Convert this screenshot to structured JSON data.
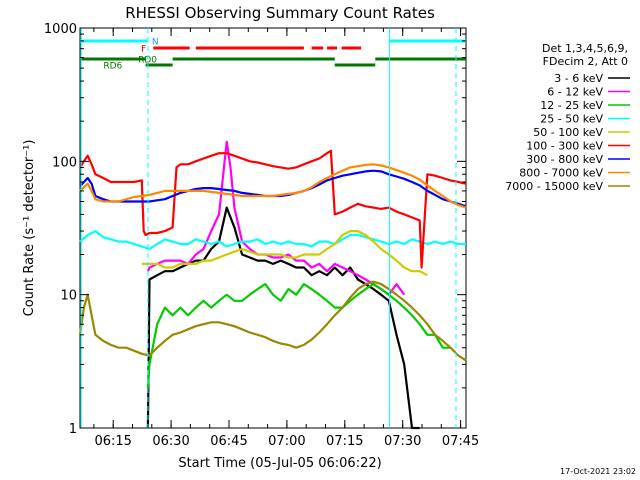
{
  "chart_data": {
    "type": "line",
    "title": "RHESSI Observing Summary Count Rates",
    "xlabel": "Start Time (05-Jul-05 06:06:22)",
    "ylabel": "Count Rate (s⁻¹ detector⁻¹)",
    "x_unit": "minutes after 06:06:22",
    "xlim": [
      0,
      100
    ],
    "ylim": [
      1,
      1000
    ],
    "y_scale": "log",
    "x_ticks": [
      {
        "x": 8.6,
        "label": "06:15"
      },
      {
        "x": 23.6,
        "label": "06:30"
      },
      {
        "x": 38.6,
        "label": "06:45"
      },
      {
        "x": 53.6,
        "label": "07:00"
      },
      {
        "x": 68.6,
        "label": "07:15"
      },
      {
        "x": 83.6,
        "label": "07:30"
      },
      {
        "x": 98.6,
        "label": "07:45"
      }
    ],
    "y_ticks": [
      {
        "y": 1,
        "label": "1"
      },
      {
        "y": 10,
        "label": "10"
      },
      {
        "y": 100,
        "label": "100"
      },
      {
        "y": 1000,
        "label": "1000"
      }
    ],
    "legend": {
      "placement": "right",
      "header": [
        "Det 1,3,4,5,6,9,",
        "FDecim 2, Att 0"
      ]
    },
    "series": [
      {
        "name": "3 - 6 keV",
        "color": "#000000",
        "x": [
          0,
          2,
          4,
          6,
          8,
          10,
          12,
          14,
          16,
          17.5,
          17.6,
          18,
          20,
          22,
          24,
          26,
          28,
          30,
          32,
          34,
          36,
          38,
          40,
          42,
          44,
          46,
          48,
          50,
          52,
          54,
          56,
          58,
          60,
          62,
          64,
          66,
          68,
          70,
          72,
          74,
          76,
          78,
          80,
          82,
          84,
          86,
          88,
          90,
          92,
          94,
          96,
          98,
          100
        ],
        "y": [
          null,
          null,
          null,
          null,
          null,
          null,
          null,
          null,
          null,
          null,
          1,
          13,
          14,
          15,
          15,
          16,
          17,
          18,
          18,
          22,
          25,
          45,
          32,
          20,
          19,
          18,
          18,
          17,
          18,
          17,
          16,
          16,
          14,
          15,
          14,
          16,
          14,
          16,
          13,
          12,
          11,
          10,
          9,
          5,
          3,
          1,
          1,
          null,
          null,
          null,
          null,
          null,
          null
        ]
      },
      {
        "name": "6 - 12 keV",
        "color": "#ff00ff",
        "x": [
          0,
          2,
          4,
          6,
          8,
          10,
          12,
          14,
          16,
          17.5,
          17.6,
          18,
          20,
          22,
          24,
          26,
          28,
          30,
          32,
          34,
          36,
          38,
          39,
          40,
          42,
          44,
          46,
          48,
          50,
          52,
          54,
          56,
          58,
          60,
          62,
          64,
          66,
          68,
          70,
          72,
          74,
          76,
          78,
          80,
          82,
          84,
          86,
          88,
          90,
          92,
          94,
          96,
          98,
          100
        ],
        "y": [
          null,
          null,
          null,
          null,
          null,
          null,
          null,
          null,
          null,
          null,
          15,
          16,
          17,
          18,
          18,
          18,
          17,
          20,
          22,
          30,
          40,
          140,
          90,
          45,
          25,
          22,
          20,
          20,
          19,
          19,
          20,
          18,
          18,
          16,
          17,
          15,
          17,
          16,
          15,
          14,
          13,
          12,
          11,
          10,
          12,
          10,
          null,
          null,
          null,
          null,
          null,
          null,
          null,
          null
        ]
      },
      {
        "name": "12 - 25 keV",
        "color": "#00cc00",
        "x": [
          0,
          2,
          4,
          6,
          8,
          10,
          12,
          14,
          16,
          17.5,
          17.6,
          18,
          20,
          22,
          24,
          26,
          28,
          30,
          32,
          34,
          36,
          38,
          40,
          42,
          44,
          46,
          48,
          50,
          52,
          54,
          56,
          58,
          60,
          62,
          64,
          66,
          68,
          70,
          72,
          74,
          76,
          78,
          80,
          82,
          84,
          86,
          88,
          90,
          92,
          94,
          96,
          98,
          100
        ],
        "y": [
          null,
          null,
          null,
          null,
          null,
          null,
          null,
          null,
          null,
          null,
          2,
          3,
          6,
          8,
          7,
          8,
          7,
          8,
          9,
          8,
          9,
          10,
          9,
          9,
          10,
          11,
          12,
          10,
          9,
          11,
          10,
          12,
          11,
          10,
          9,
          8,
          8,
          9,
          10,
          11,
          12,
          11,
          10,
          9,
          8,
          7,
          6,
          5,
          5,
          4,
          4,
          null,
          null
        ]
      },
      {
        "name": "25 - 50 keV",
        "color": "#00ffff",
        "x": [
          0,
          2,
          4,
          6,
          8,
          10,
          12,
          14,
          16,
          18,
          20,
          22,
          24,
          26,
          28,
          30,
          32,
          34,
          36,
          38,
          40,
          42,
          44,
          46,
          48,
          50,
          52,
          54,
          56,
          58,
          60,
          62,
          64,
          66,
          68,
          70,
          72,
          74,
          76,
          78,
          80,
          82,
          84,
          86,
          88,
          90,
          92,
          94,
          96,
          98,
          100
        ],
        "y": [
          25,
          28,
          30,
          27,
          26,
          25,
          25,
          24,
          23,
          22,
          24,
          26,
          25,
          24,
          24,
          26,
          25,
          24,
          25,
          23,
          24,
          25,
          25,
          26,
          24,
          25,
          24,
          25,
          24,
          24,
          23,
          25,
          25,
          24,
          26,
          28,
          28,
          27,
          26,
          25,
          24,
          25,
          24,
          26,
          25,
          24,
          25,
          24,
          25,
          24,
          24
        ]
      },
      {
        "name": "50 - 100 keV",
        "color": "#cccc00",
        "x": [
          0,
          2,
          4,
          6,
          8,
          10,
          12,
          14,
          16,
          18,
          20,
          22,
          24,
          26,
          28,
          30,
          32,
          34,
          36,
          38,
          40,
          42,
          44,
          46,
          48,
          50,
          52,
          54,
          56,
          58,
          60,
          62,
          64,
          66,
          68,
          70,
          72,
          74,
          76,
          78,
          80,
          82,
          84,
          86,
          88,
          90,
          92,
          94,
          96,
          98,
          100
        ],
        "y": [
          null,
          null,
          null,
          null,
          null,
          null,
          null,
          null,
          17,
          17,
          17,
          16,
          16,
          17,
          17,
          17,
          18,
          18,
          19,
          20,
          21,
          22,
          21,
          20,
          20,
          20,
          20,
          19,
          19,
          20,
          20,
          20,
          22,
          24,
          28,
          30,
          30,
          28,
          25,
          22,
          20,
          18,
          16,
          15,
          15,
          14,
          null,
          null,
          null,
          null,
          null
        ]
      },
      {
        "name": "100 - 300 keV",
        "color": "#ff0000",
        "x": [
          0,
          1,
          2,
          3,
          4,
          6,
          8,
          10,
          12,
          14,
          16,
          16.5,
          17,
          18,
          20,
          22,
          24,
          25,
          26,
          28,
          30,
          32,
          34,
          36,
          38,
          40,
          42,
          44,
          46,
          48,
          50,
          52,
          54,
          56,
          58,
          60,
          62,
          64,
          65,
          66,
          68,
          70,
          72,
          74,
          76,
          78,
          80,
          82,
          84,
          86,
          88,
          88.5,
          90,
          92,
          94,
          96,
          98,
          100
        ],
        "y": [
          90,
          100,
          110,
          95,
          80,
          75,
          70,
          70,
          70,
          70,
          72,
          30,
          28,
          29,
          29,
          30,
          32,
          90,
          95,
          95,
          100,
          105,
          110,
          115,
          115,
          110,
          105,
          100,
          98,
          95,
          92,
          90,
          88,
          90,
          95,
          100,
          105,
          115,
          120,
          40,
          42,
          45,
          48,
          46,
          45,
          44,
          45,
          42,
          40,
          38,
          36,
          16,
          80,
          78,
          75,
          72,
          70,
          68
        ]
      },
      {
        "name": "300 - 800 keV",
        "color": "#0000ff",
        "x": [
          0,
          1,
          2,
          3,
          4,
          6,
          8,
          10,
          12,
          14,
          16,
          18,
          20,
          22,
          24,
          26,
          28,
          30,
          32,
          34,
          36,
          38,
          40,
          42,
          44,
          46,
          48,
          50,
          52,
          54,
          56,
          58,
          60,
          62,
          64,
          66,
          68,
          70,
          72,
          74,
          76,
          78,
          80,
          82,
          84,
          86,
          88,
          90,
          92,
          94,
          96,
          98,
          100
        ],
        "y": [
          65,
          70,
          75,
          68,
          55,
          52,
          50,
          50,
          50,
          50,
          50,
          50,
          51,
          52,
          55,
          58,
          60,
          62,
          63,
          63,
          62,
          61,
          60,
          58,
          57,
          56,
          55,
          55,
          55,
          56,
          58,
          60,
          63,
          67,
          72,
          75,
          78,
          80,
          82,
          84,
          85,
          84,
          80,
          77,
          74,
          70,
          66,
          60,
          56,
          52,
          50,
          48,
          46
        ]
      },
      {
        "name": "800 - 7000 keV",
        "color": "#ff8800",
        "x": [
          0,
          1,
          2,
          3,
          4,
          6,
          8,
          10,
          12,
          14,
          16,
          18,
          20,
          22,
          24,
          26,
          28,
          30,
          32,
          34,
          36,
          38,
          40,
          42,
          44,
          46,
          48,
          50,
          52,
          54,
          56,
          58,
          60,
          62,
          64,
          66,
          68,
          70,
          72,
          74,
          76,
          78,
          80,
          82,
          84,
          86,
          88,
          90,
          92,
          94,
          96,
          98,
          100
        ],
        "y": [
          60,
          64,
          68,
          60,
          52,
          50,
          50,
          50,
          52,
          54,
          55,
          56,
          58,
          60,
          60,
          60,
          60,
          60,
          60,
          59,
          58,
          57,
          56,
          55,
          55,
          55,
          55,
          55,
          56,
          57,
          58,
          60,
          64,
          70,
          75,
          80,
          85,
          90,
          92,
          94,
          95,
          93,
          90,
          86,
          82,
          78,
          73,
          66,
          60,
          55,
          50,
          47,
          45
        ]
      },
      {
        "name": "7000 - 15000 keV",
        "color": "#998800",
        "x": [
          0,
          1,
          2,
          3,
          4,
          6,
          8,
          10,
          12,
          14,
          16,
          18,
          20,
          22,
          24,
          26,
          28,
          30,
          32,
          34,
          36,
          38,
          40,
          42,
          44,
          46,
          48,
          50,
          52,
          54,
          56,
          58,
          60,
          62,
          64,
          66,
          68,
          70,
          72,
          74,
          76,
          78,
          80,
          82,
          84,
          86,
          88,
          90,
          92,
          94,
          96,
          98,
          100
        ],
        "y": [
          5,
          8,
          10,
          7,
          5,
          4.5,
          4.2,
          4,
          4,
          3.8,
          3.6,
          3.5,
          4,
          4.5,
          5,
          5.2,
          5.5,
          5.8,
          6,
          6.2,
          6.2,
          6,
          5.8,
          5.5,
          5.2,
          5,
          4.8,
          4.5,
          4.3,
          4.2,
          4,
          4.2,
          4.6,
          5.2,
          6,
          7,
          8,
          9.5,
          11,
          12,
          12.5,
          12,
          11,
          10,
          9,
          8,
          7,
          6,
          5,
          4.5,
          4,
          3.5,
          3.2
        ]
      }
    ],
    "vertical_lines": [
      {
        "x": 0.3,
        "color": "#00ffff",
        "style": "solid"
      },
      {
        "x": 17.6,
        "color": "#00ffff",
        "style": "dashed"
      },
      {
        "x": 80.2,
        "color": "#00ffff",
        "style": "solid"
      },
      {
        "x": 97.4,
        "color": "#00ffff",
        "style": "dashed"
      }
    ],
    "state_bars": [
      {
        "label": "N",
        "color": "#00ffff",
        "row": 1,
        "segments": [
          [
            0,
            17.6
          ],
          [
            80.2,
            100
          ]
        ],
        "label_at": 19.5
      },
      {
        "label": "F",
        "color": "#ff0000",
        "row": 2,
        "segments": [
          [
            19,
            28.4
          ],
          [
            30,
            58
          ],
          [
            60,
            63
          ],
          [
            64,
            66.6
          ],
          [
            67.8,
            72.8
          ]
        ],
        "label_at": 16.5
      },
      {
        "label": "RD0",
        "color": "#007700",
        "row": 3,
        "segments": [
          [
            0,
            17
          ],
          [
            24,
            66
          ],
          [
            76.5,
            100
          ]
        ],
        "label_at": 17.5
      },
      {
        "label": "RD6",
        "color": "#007700",
        "row": 4,
        "segments": [
          [
            17,
            24
          ],
          [
            66,
            76.5
          ]
        ],
        "label_at": 8.5
      }
    ]
  },
  "footer": {
    "date_stamp": "17-Oct-2021 23:02"
  }
}
